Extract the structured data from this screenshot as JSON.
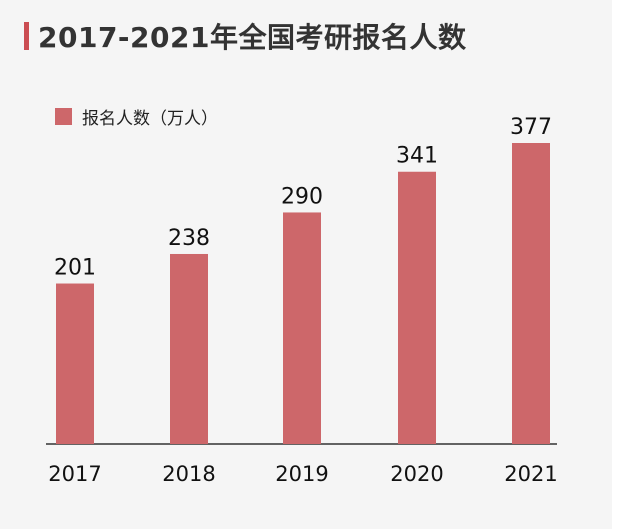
{
  "title": "2017-2021年全国考研报名人数",
  "colors": {
    "accent": "#cb4d52",
    "bar": "#cd676a",
    "axis": "#333333"
  },
  "chart_data": {
    "type": "bar",
    "categories": [
      "2017",
      "2018",
      "2019",
      "2020",
      "2021"
    ],
    "series": [
      {
        "name": "报名人数（万人）",
        "values": [
          201,
          238,
          290,
          341,
          377
        ]
      }
    ],
    "title": "2017-2021年全国考研报名人数",
    "xlabel": "",
    "ylabel": "",
    "ylim": [
      0,
      377
    ],
    "grid": false,
    "legend": "top-left",
    "data_labels": true
  }
}
